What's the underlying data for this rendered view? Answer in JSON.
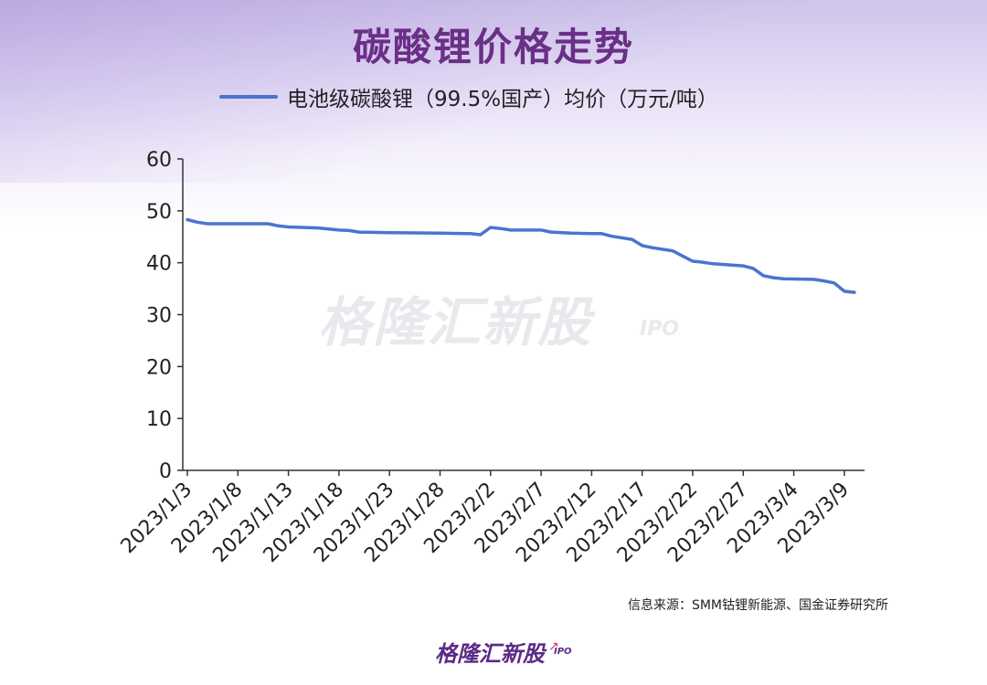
{
  "chart_data": {
    "type": "line",
    "title": "碳酸锂价格走势",
    "legend": "top",
    "series": [
      {
        "name": "电池级碳酸锂（99.5%国产）均价（万元/吨）",
        "color": "#4a74d1",
        "points": [
          [
            "2023/1/3",
            48.3
          ],
          [
            "2023/1/4",
            47.8
          ],
          [
            "2023/1/5",
            47.5
          ],
          [
            "2023/1/8",
            47.5
          ],
          [
            "2023/1/11",
            47.5
          ],
          [
            "2023/1/12",
            47.1
          ],
          [
            "2023/1/13",
            46.9
          ],
          [
            "2023/1/16",
            46.7
          ],
          [
            "2023/1/17",
            46.5
          ],
          [
            "2023/1/18",
            46.3
          ],
          [
            "2023/1/19",
            46.2
          ],
          [
            "2023/1/20",
            45.9
          ],
          [
            "2023/1/23",
            45.8
          ],
          [
            "2023/1/28",
            45.7
          ],
          [
            "2023/1/31",
            45.6
          ],
          [
            "2023/2/1",
            45.4
          ],
          [
            "2023/2/2",
            46.8
          ],
          [
            "2023/2/3",
            46.6
          ],
          [
            "2023/2/4",
            46.3
          ],
          [
            "2023/2/7",
            46.3
          ],
          [
            "2023/2/8",
            45.9
          ],
          [
            "2023/2/10",
            45.7
          ],
          [
            "2023/2/12",
            45.6
          ],
          [
            "2023/2/13",
            45.6
          ],
          [
            "2023/2/14",
            45.1
          ],
          [
            "2023/2/16",
            44.5
          ],
          [
            "2023/2/17",
            43.3
          ],
          [
            "2023/2/18",
            42.9
          ],
          [
            "2023/2/20",
            42.3
          ],
          [
            "2023/2/21",
            41.3
          ],
          [
            "2023/2/22",
            40.3
          ],
          [
            "2023/2/23",
            40.1
          ],
          [
            "2023/2/24",
            39.8
          ],
          [
            "2023/2/27",
            39.4
          ],
          [
            "2023/2/28",
            38.9
          ],
          [
            "2023/3/1",
            37.5
          ],
          [
            "2023/3/2",
            37.1
          ],
          [
            "2023/3/3",
            36.9
          ],
          [
            "2023/3/6",
            36.8
          ],
          [
            "2023/3/7",
            36.5
          ],
          [
            "2023/3/8",
            36.1
          ],
          [
            "2023/3/9",
            34.5
          ],
          [
            "2023/3/10",
            34.3
          ]
        ]
      }
    ],
    "x_ticks": [
      "2023/1/3",
      "2023/1/8",
      "2023/1/13",
      "2023/1/18",
      "2023/1/23",
      "2023/1/28",
      "2023/2/2",
      "2023/2/7",
      "2023/2/12",
      "2023/2/17",
      "2023/2/22",
      "2023/2/27",
      "2023/3/4",
      "2023/3/9"
    ],
    "x_range": [
      "2023/1/3",
      "2023/3/11"
    ],
    "y_ticks": [
      0,
      10,
      20,
      30,
      40,
      50,
      60
    ],
    "ylim": [
      0,
      60
    ],
    "grid": false
  },
  "source": "信息来源：SMM钴锂新能源、国金证券研究所",
  "watermark": "格隆汇新股",
  "watermark_ipo": "IPO",
  "footer_logo": "格隆汇新股",
  "footer_ipo": "IPO",
  "colors": {
    "title": "#6a2f86",
    "line": "#4a74d1",
    "logo": "#5b2a86"
  }
}
